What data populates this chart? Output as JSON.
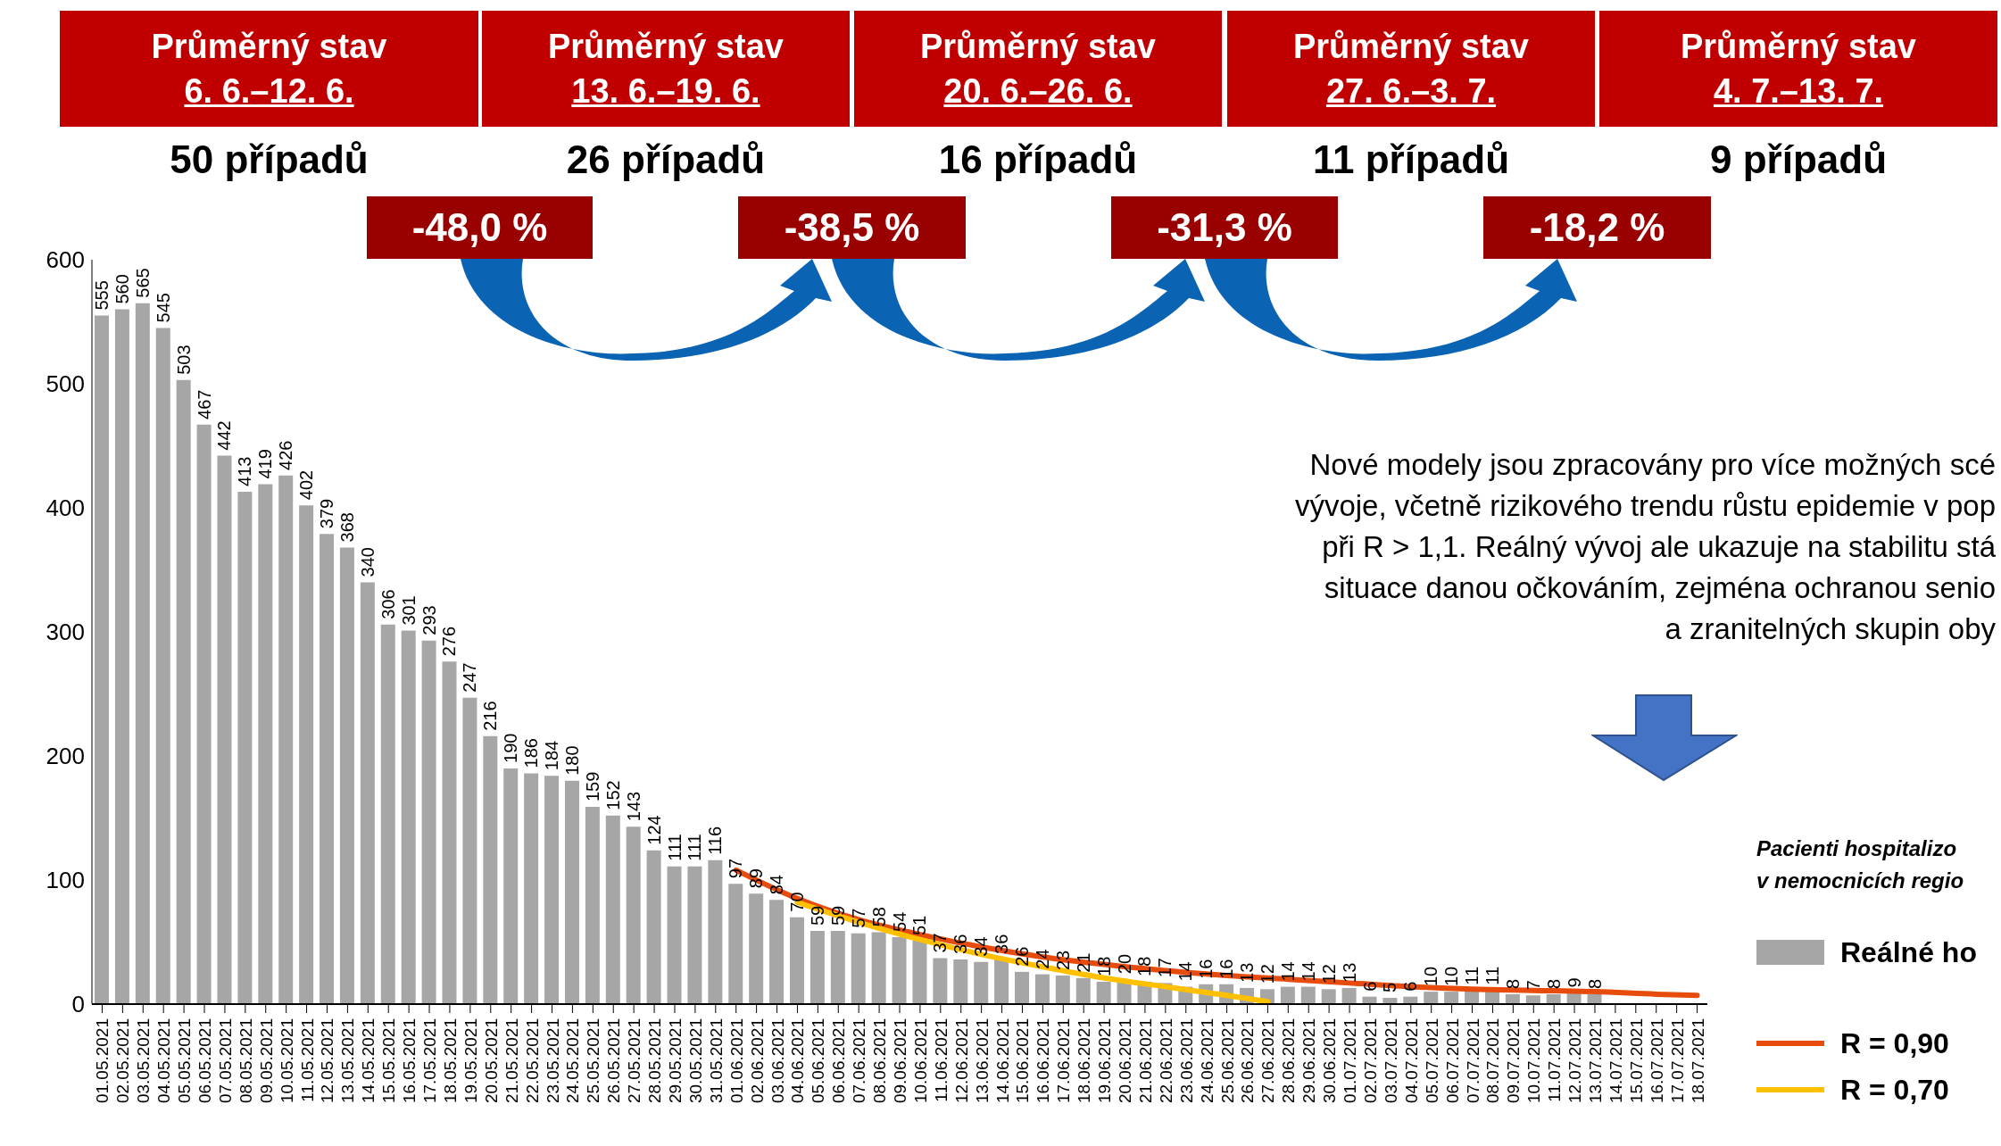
{
  "chart_data": {
    "type": "bar",
    "categories": [
      "01.05.2021",
      "02.05.2021",
      "03.05.2021",
      "04.05.2021",
      "05.05.2021",
      "06.05.2021",
      "07.05.2021",
      "08.05.2021",
      "09.05.2021",
      "10.05.2021",
      "11.05.2021",
      "12.05.2021",
      "13.05.2021",
      "14.05.2021",
      "15.05.2021",
      "16.05.2021",
      "17.05.2021",
      "18.05.2021",
      "19.05.2021",
      "20.05.2021",
      "21.05.2021",
      "22.05.2021",
      "23.05.2021",
      "24.05.2021",
      "25.05.2021",
      "26.05.2021",
      "27.05.2021",
      "28.05.2021",
      "29.05.2021",
      "30.05.2021",
      "31.05.2021",
      "01.06.2021",
      "02.06.2021",
      "03.06.2021",
      "04.06.2021",
      "05.06.2021",
      "06.06.2021",
      "07.06.2021",
      "08.06.2021",
      "09.06.2021",
      "10.06.2021",
      "11.06.2021",
      "12.06.2021",
      "13.06.2021",
      "14.06.2021",
      "15.06.2021",
      "16.06.2021",
      "17.06.2021",
      "18.06.2021",
      "19.06.2021",
      "20.06.2021",
      "21.06.2021",
      "22.06.2021",
      "23.06.2021",
      "24.06.2021",
      "25.06.2021",
      "26.06.2021",
      "27.06.2021",
      "28.06.2021",
      "29.06.2021",
      "30.06.2021",
      "01.07.2021",
      "02.07.2021",
      "03.07.2021",
      "04.07.2021",
      "05.07.2021",
      "06.07.2021",
      "07.07.2021",
      "08.07.2021",
      "09.07.2021",
      "10.07.2021",
      "11.07.2021",
      "12.07.2021",
      "13.07.2021",
      "14.07.2021",
      "15.07.2021",
      "16.07.2021",
      "17.07.2021",
      "18.07.2021"
    ],
    "series": [
      {
        "name": "Reálné ho",
        "color": "#a6a6a6",
        "values": [
          555,
          560,
          565,
          545,
          503,
          467,
          442,
          413,
          419,
          426,
          402,
          379,
          368,
          340,
          306,
          301,
          293,
          276,
          247,
          216,
          190,
          186,
          184,
          180,
          159,
          152,
          143,
          124,
          111,
          111,
          116,
          97,
          89,
          84,
          70,
          59,
          59,
          57,
          58,
          54,
          51,
          37,
          36,
          34,
          36,
          26,
          24,
          23,
          21,
          18,
          20,
          18,
          17,
          14,
          16,
          16,
          13,
          12,
          14,
          14,
          12,
          13,
          6,
          5,
          6,
          10,
          10,
          11,
          11,
          8,
          7,
          8,
          9,
          8,
          null,
          null,
          null,
          null,
          null
        ],
        "value_labels": [
          "555",
          "560",
          "565",
          "545",
          "503",
          "467",
          "442",
          "413",
          "419",
          "426",
          "402",
          "379",
          "368",
          "340",
          "306",
          "301",
          "293",
          "276",
          "247",
          "216",
          "190",
          "186",
          "184",
          "180",
          "159",
          "152",
          "143",
          "124",
          "111",
          "111",
          "116",
          "97",
          "89",
          "84",
          "70",
          "59",
          "59",
          "57",
          "58",
          "54",
          "51",
          "37",
          "36",
          "34",
          "36",
          "26",
          "24",
          "23",
          "21",
          "18",
          "20",
          "18",
          "17",
          "14",
          "16",
          "16",
          "13",
          "12",
          "14",
          "14",
          "12",
          "13",
          "6",
          "5",
          "6",
          "10",
          "10",
          "11",
          "11",
          "8",
          "7",
          "8",
          "9",
          "8",
          null,
          null,
          null,
          null,
          null
        ]
      },
      {
        "name": "R = 0,90",
        "type": "line",
        "color": "#e84c0c",
        "x": [
          "01.06.2021",
          "04.06.2021",
          "07.06.2021",
          "10.06.2021",
          "13.06.2021",
          "16.06.2021",
          "19.06.2021",
          "22.06.2021",
          "25.06.2021",
          "28.06.2021",
          "01.07.2021",
          "04.07.2021",
          "07.07.2021",
          "10.07.2021",
          "13.07.2021",
          "16.07.2021",
          "18.07.2021"
        ],
        "values": [
          108,
          85,
          68,
          56,
          46,
          38,
          32,
          27,
          23,
          20,
          17,
          14,
          12,
          11,
          10,
          8,
          7
        ]
      },
      {
        "name": "R = 0,70",
        "type": "line",
        "color": "#ffc000",
        "x": [
          "04.06.2021",
          "07.06.2021",
          "10.06.2021",
          "13.06.2021",
          "16.06.2021",
          "19.06.2021",
          "22.06.2021",
          "25.06.2021",
          "27.06.2021"
        ],
        "values": [
          82,
          66,
          52,
          40,
          30,
          21,
          14,
          7,
          2
        ]
      }
    ],
    "ylim": [
      0,
      600
    ],
    "yticks": [
      0,
      100,
      200,
      300,
      400,
      500,
      600
    ],
    "grid": false,
    "legend": "right",
    "line_style": "solid",
    "marker": "none",
    "legend_title": "Pacienti hospitalizo\nv nemocnicích regio",
    "annotations": [
      "Průměrný stav\n6. 6.–12. 6.",
      "Průměrný stav\n13. 6.–19. 6.",
      "Průměrný stav\n20. 6.–26. 6.",
      "Průměrný stav\n27. 6.–3. 7.",
      "Průměrný stav\n4. 7.–13. 7.",
      "50 případů",
      "26 případů",
      "16 případů",
      "11 případů",
      "9 případů",
      "-48,0 %",
      "-38,5 %",
      "-31,3 %",
      "-18,2 %",
      "Nové modely jsou zpracovány pro více možných scé\nvývoje, včetně rizikového trendu růstu epidemie v pop\npři R > 1,1. Reálný vývoj ale ukazuje na stabilitu stá\nsituace danou očkováním, zejména ochranou senio\na zranitelných skupin oby"
    ]
  }
}
